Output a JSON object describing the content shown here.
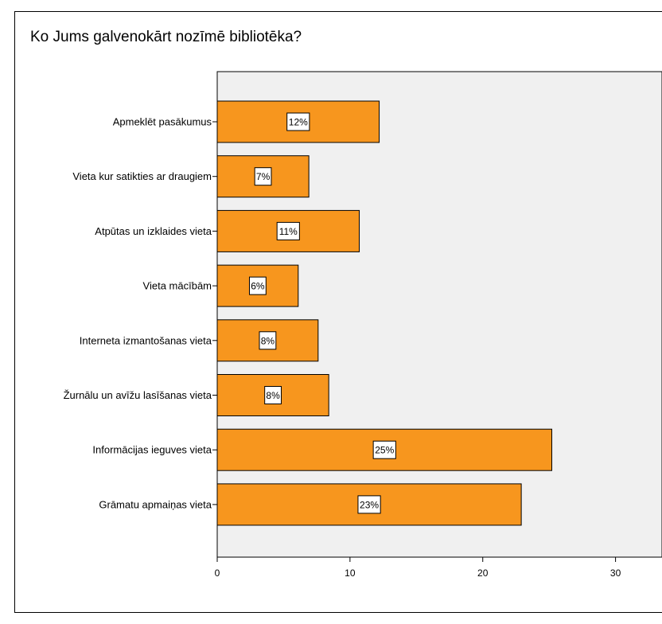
{
  "chart_data": {
    "type": "bar",
    "orientation": "horizontal",
    "title": "Ko Jums galvenokārt nozīmē bibliotēka?",
    "categories": [
      "Apmeklēt pasākumus",
      "Vieta kur satikties ar draugiem",
      "Atpūtas un izklaides vieta",
      "Vieta mācībām",
      "Interneta izmantošanas vieta",
      "Žurnālu un avīžu lasīšanas vieta",
      "Informācijas ieguves vieta",
      "Grāmatu apmaiņas vieta"
    ],
    "values": [
      12.2,
      6.9,
      10.7,
      6.1,
      7.6,
      8.4,
      25.2,
      22.9
    ],
    "data_labels": [
      "12%",
      "7%",
      "11%",
      "6%",
      "8%",
      "8%",
      "25%",
      "23%"
    ],
    "xlim": [
      0,
      33.5
    ],
    "xticks": [
      "0",
      "10",
      "20",
      "30"
    ],
    "xtick_values": [
      0,
      10,
      20,
      30
    ],
    "grid": false,
    "legend": "none",
    "colors": {
      "bar_fill": "#F7961E",
      "bar_stroke": "#000000",
      "plot_background": "#F0F0F0",
      "label_box": "#FFFFFF"
    }
  }
}
